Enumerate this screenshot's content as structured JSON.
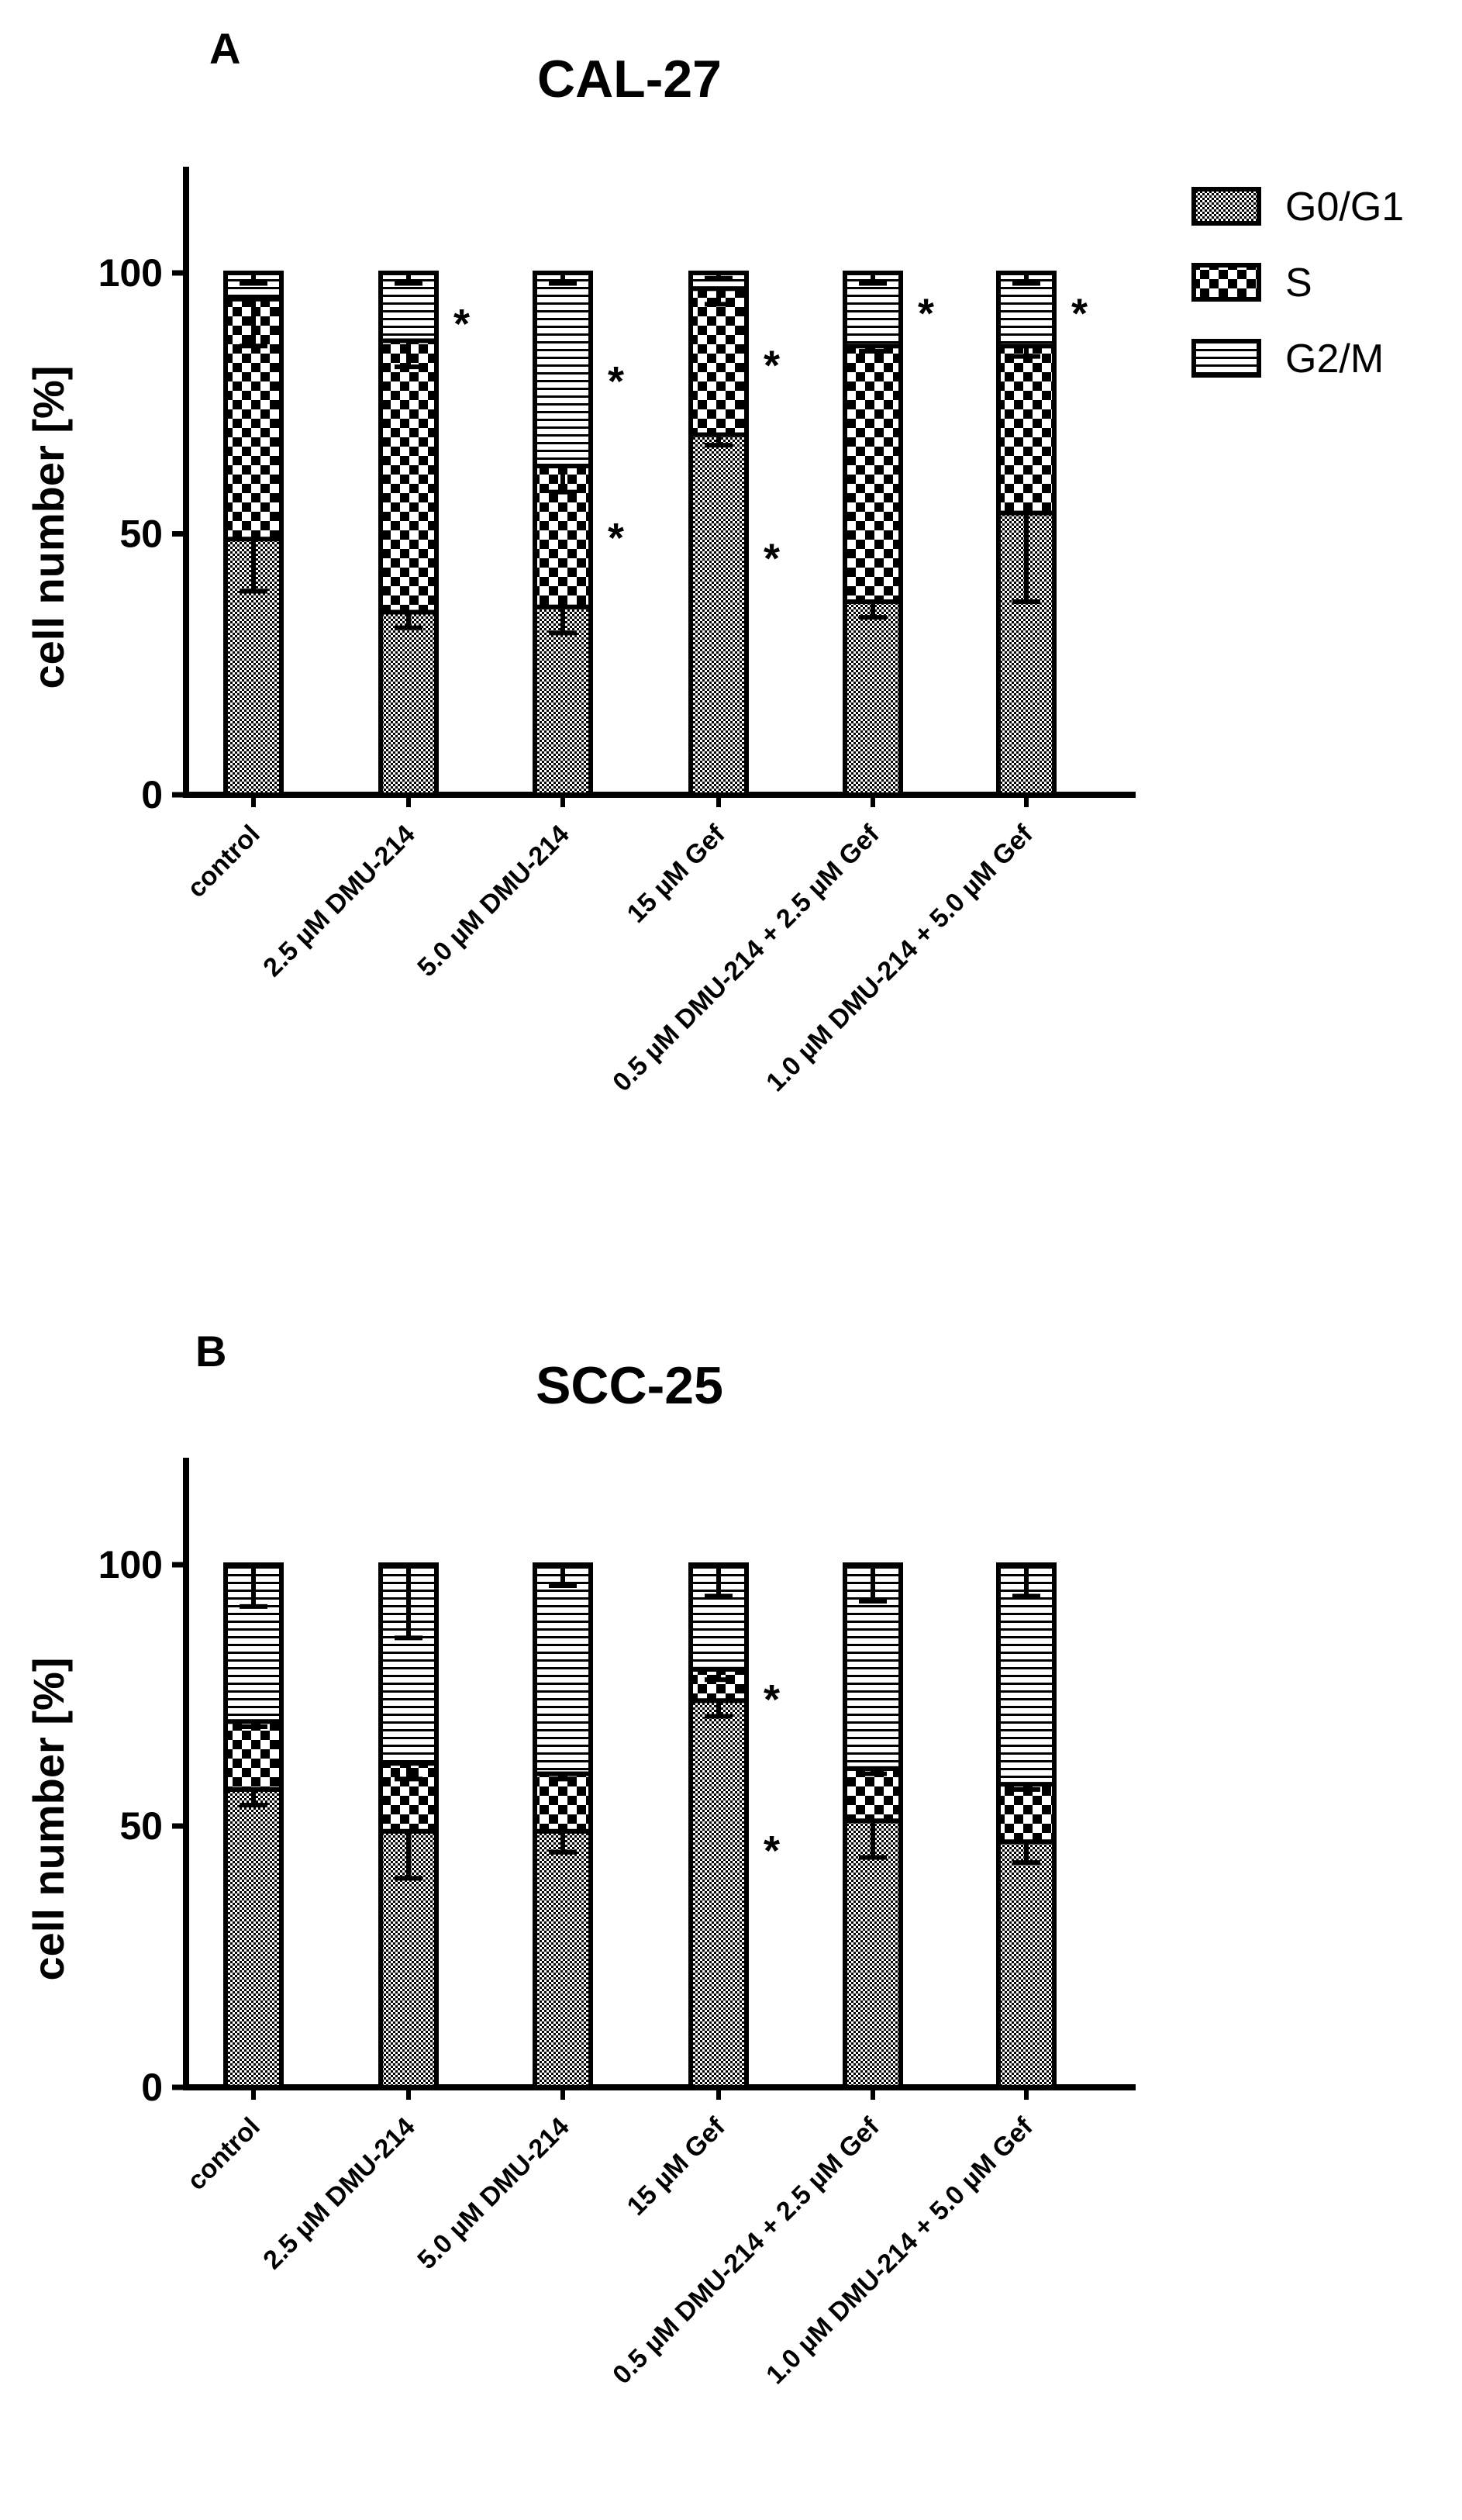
{
  "chart_data": [
    {
      "type": "bar",
      "stacked": true,
      "panel": "A",
      "title": "CAL-27",
      "ylabel": "cell number [%]",
      "xlabel": "",
      "ylim": [
        0,
        120
      ],
      "yticks": [
        0,
        50,
        100
      ],
      "grid": false,
      "legend": "top-right",
      "categories": [
        "control",
        "2.5 µM DMU-214",
        "5.0 µM DMU-214",
        "15 µM Gef",
        "0.5 µM DMU-214 + 2.5 µM Gef",
        "1.0 µM DMU-214 + 5.0 µM Gef"
      ],
      "series": [
        {
          "name": "G0/G1",
          "pattern": "dots",
          "values": [
            49,
            35,
            36,
            69,
            37,
            54
          ],
          "errors": [
            10,
            3,
            5,
            2,
            3,
            17
          ]
        },
        {
          "name": "S",
          "pattern": "checker",
          "values": [
            46,
            52,
            27,
            28,
            49,
            32
          ],
          "errors": [
            9,
            5,
            5,
            3,
            1,
            2
          ]
        },
        {
          "name": "G2/M",
          "pattern": "lines",
          "values": [
            5,
            13,
            37,
            3,
            14,
            14
          ],
          "errors": [
            2,
            2,
            2,
            1,
            2,
            2
          ]
        }
      ],
      "significance": [
        {
          "category": 1,
          "at": 92,
          "label": "*"
        },
        {
          "category": 2,
          "at": 81,
          "label": "*"
        },
        {
          "category": 2,
          "at": 51,
          "label": "*"
        },
        {
          "category": 3,
          "at": 84,
          "label": "*"
        },
        {
          "category": 3,
          "at": 47,
          "label": "*"
        },
        {
          "category": 4,
          "at": 94,
          "label": "*"
        },
        {
          "category": 5,
          "at": 94,
          "label": "*"
        }
      ]
    },
    {
      "type": "bar",
      "stacked": true,
      "panel": "B",
      "title": "SCC-25",
      "ylabel": "cell number [%]",
      "xlabel": "",
      "ylim": [
        0,
        120
      ],
      "yticks": [
        0,
        50,
        100
      ],
      "grid": false,
      "categories": [
        "control",
        "2.5 µM DMU-214",
        "5.0 µM DMU-214",
        "15 µM Gef",
        "0.5 µM DMU-214 + 2.5 µM Gef",
        "1.0 µM DMU-214 + 5.0 µM Gef"
      ],
      "series": [
        {
          "name": "G0/G1",
          "pattern": "dots",
          "values": [
            57,
            49,
            49,
            74,
            51,
            47
          ],
          "errors": [
            3,
            9,
            4,
            3,
            7,
            4
          ]
        },
        {
          "name": "S",
          "pattern": "checker",
          "values": [
            13,
            13,
            11,
            6,
            10,
            11
          ],
          "errors": [
            1,
            3,
            1,
            2,
            1,
            1
          ]
        },
        {
          "name": "G2/M",
          "pattern": "lines",
          "values": [
            30,
            38,
            40,
            20,
            39,
            42
          ],
          "errors": [
            8,
            14,
            4,
            6,
            7,
            6
          ]
        }
      ],
      "significance": [
        {
          "category": 3,
          "at": 76,
          "label": "*"
        },
        {
          "category": 3,
          "at": 47,
          "label": "*"
        }
      ]
    }
  ]
}
